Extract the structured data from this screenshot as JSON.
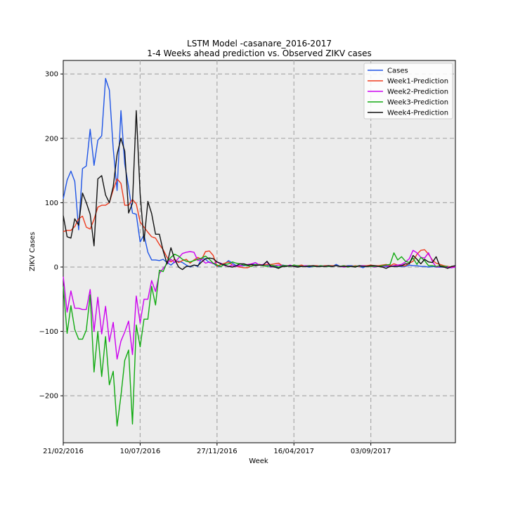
{
  "chart_data": {
    "type": "line",
    "title_line1": "LSTM Model -casanare_2016-2017",
    "title_line2": "1-4 Weeks ahead prediction vs. Observed ZIKV cases",
    "xlabel": "Week",
    "ylabel": "ZIKV Cases",
    "x_tick_labels": [
      "21/02/2016",
      "10/07/2016",
      "27/11/2016",
      "16/04/2017",
      "03/09/2017"
    ],
    "y_ticks": [
      -200,
      -100,
      0,
      100,
      200,
      300
    ],
    "y_tick_labels": [
      "−200",
      "−100",
      "0",
      "100",
      "200",
      "300"
    ],
    "ylim": [
      -273,
      321
    ],
    "grid": true,
    "legend_position": "top-right",
    "series": [
      {
        "name": "Cases",
        "color": "#1f55e6",
        "values": [
          106,
          135,
          149,
          133,
          58,
          153,
          157,
          214,
          158,
          197,
          204,
          293,
          275,
          184,
          119,
          243,
          160,
          124,
          84,
          82,
          39,
          50,
          23,
          11,
          11,
          10,
          12,
          7,
          3,
          8,
          9,
          7,
          3,
          0,
          3,
          1,
          14,
          12,
          7,
          6,
          1,
          1,
          5,
          10,
          6,
          2,
          2,
          2,
          3,
          4,
          4,
          4,
          3,
          3,
          0,
          1,
          -1,
          3,
          2,
          2,
          1,
          1,
          2,
          1,
          0,
          1,
          1,
          1,
          2,
          1,
          1,
          4,
          1,
          1,
          2,
          2,
          1,
          1,
          -1,
          2,
          2,
          1,
          1,
          1,
          1,
          1,
          1,
          1,
          1,
          1,
          3,
          2,
          2,
          1,
          1,
          0,
          1,
          0,
          0,
          0,
          -1,
          -1,
          1
        ]
      },
      {
        "name": "Week1-Prediction",
        "color": "#ee3b1f",
        "values": [
          55,
          57,
          57,
          63,
          75,
          79,
          62,
          59,
          74,
          93,
          96,
          96,
          100,
          120,
          137,
          130,
          96,
          96,
          105,
          98,
          70,
          62,
          54,
          47,
          45,
          35,
          27,
          15,
          8,
          12,
          7,
          10,
          12,
          6,
          11,
          15,
          12,
          24,
          25,
          18,
          1,
          4,
          6,
          8,
          3,
          1,
          0,
          -1,
          -1,
          2,
          3,
          4,
          3,
          4,
          4,
          5,
          6,
          2,
          2,
          2,
          2,
          2,
          3,
          1,
          2,
          2,
          2,
          1,
          2,
          2,
          2,
          2,
          1,
          2,
          1,
          1,
          2,
          1,
          2,
          2,
          3,
          2,
          2,
          3,
          4,
          2,
          5,
          3,
          2,
          2,
          6,
          9,
          20,
          26,
          27,
          20,
          11,
          6,
          4,
          2,
          1,
          0,
          0
        ]
      },
      {
        "name": "Week2-Prediction",
        "color": "#cc00ee",
        "values": [
          -15,
          -70,
          -37,
          -64,
          -64,
          -66,
          -66,
          -35,
          -100,
          -47,
          -104,
          -61,
          -116,
          -86,
          -143,
          -115,
          -101,
          -84,
          -136,
          -45,
          -87,
          -50,
          -50,
          -21,
          -38,
          -10,
          -2,
          5,
          12,
          7,
          14,
          21,
          23,
          24,
          23,
          10,
          12,
          6,
          8,
          5,
          8,
          6,
          2,
          1,
          3,
          1,
          2,
          3,
          4,
          5,
          7,
          3,
          4,
          8,
          0,
          2,
          3,
          2,
          1,
          3,
          1,
          2,
          1,
          2,
          2,
          1,
          1,
          2,
          1,
          1,
          1,
          2,
          1,
          0,
          1,
          1,
          1,
          2,
          2,
          1,
          1,
          0,
          1,
          1,
          2,
          1,
          2,
          3,
          4,
          8,
          13,
          26,
          22,
          15,
          14,
          22,
          9,
          0,
          1,
          0,
          0,
          -1,
          0
        ]
      },
      {
        "name": "Week3-Prediction",
        "color": "#11aa11",
        "values": [
          -30,
          -103,
          -60,
          -97,
          -112,
          -112,
          -98,
          -43,
          -163,
          -100,
          -170,
          -108,
          -183,
          -162,
          -247,
          -200,
          -145,
          -129,
          -244,
          -90,
          -124,
          -81,
          -81,
          -30,
          -59,
          -5,
          -7,
          8,
          15,
          20,
          17,
          12,
          9,
          8,
          10,
          12,
          14,
          17,
          12,
          6,
          3,
          1,
          4,
          5,
          8,
          6,
          5,
          3,
          2,
          1,
          4,
          3,
          2,
          1,
          3,
          2,
          0,
          2,
          2,
          1,
          3,
          2,
          1,
          1,
          2,
          1,
          1,
          2,
          1,
          1,
          1,
          2,
          1,
          2,
          0,
          1,
          1,
          2,
          1,
          1,
          1,
          1,
          1,
          2,
          3,
          4,
          22,
          11,
          16,
          9,
          7,
          14,
          4,
          15,
          10,
          2,
          2,
          1,
          2,
          1,
          1
        ]
      },
      {
        "name": "Week4-Prediction",
        "color": "#111111",
        "values": [
          80,
          47,
          45,
          75,
          65,
          115,
          100,
          82,
          33,
          137,
          142,
          112,
          100,
          125,
          175,
          200,
          180,
          84,
          99,
          243,
          114,
          40,
          102,
          83,
          51,
          51,
          25,
          5,
          30,
          12,
          0,
          -4,
          1,
          1,
          3,
          2,
          8,
          13,
          14,
          13,
          8,
          5,
          3,
          1,
          0,
          2,
          5,
          5,
          3,
          4,
          2,
          3,
          3,
          9,
          1,
          0,
          -2,
          1,
          1,
          2,
          1,
          0,
          1,
          1,
          1,
          2,
          1,
          1,
          1,
          2,
          1,
          2,
          1,
          1,
          1,
          1,
          0,
          2,
          1,
          1,
          2,
          2,
          1,
          0,
          -2,
          1,
          1,
          1,
          2,
          5,
          5,
          18,
          12,
          5,
          12,
          8,
          7,
          16,
          1,
          0,
          -2,
          1,
          2
        ]
      }
    ]
  }
}
